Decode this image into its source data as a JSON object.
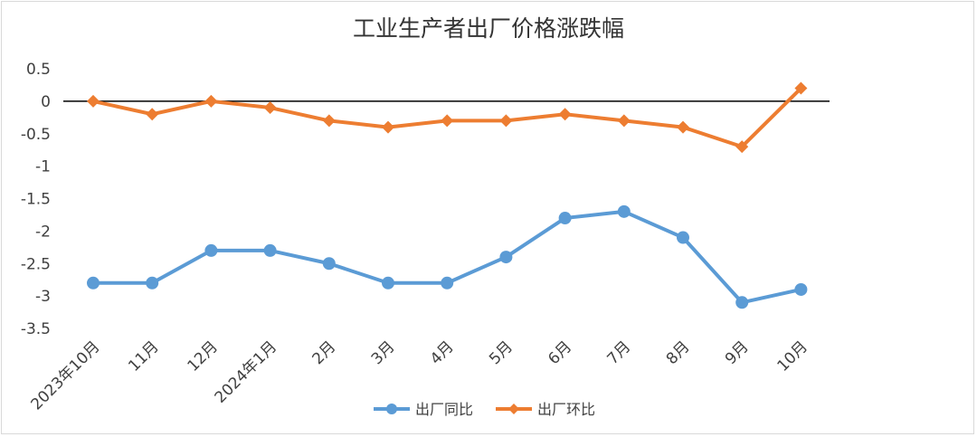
{
  "chart_data": {
    "type": "line",
    "title": "工业生产者出厂价格涨跌幅",
    "xlabel": "",
    "ylabel": "",
    "categories": [
      "2023年10月",
      "11月",
      "12月",
      "2024年1月",
      "2月",
      "3月",
      "4月",
      "5月",
      "6月",
      "7月",
      "8月",
      "9月",
      "10月"
    ],
    "yticks": [
      "0.5",
      "0",
      "-0.5",
      "-1",
      "-1.5",
      "-2",
      "-2.5",
      "-3",
      "-3.5"
    ],
    "ylim": [
      -3.5,
      0.5
    ],
    "grid": false,
    "legend_position": "bottom",
    "series": [
      {
        "name": "出厂同比",
        "color": "#5b9bd5",
        "marker": "circle",
        "values": [
          -2.8,
          -2.8,
          -2.3,
          -2.3,
          -2.5,
          -2.8,
          -2.8,
          -2.4,
          -1.8,
          -1.7,
          -2.1,
          -3.1,
          -2.9
        ]
      },
      {
        "name": "出厂环比",
        "color": "#ed7d31",
        "marker": "diamond",
        "values": [
          0,
          -0.2,
          0,
          -0.1,
          -0.3,
          -0.4,
          -0.3,
          -0.3,
          -0.2,
          -0.3,
          -0.4,
          -0.7,
          0.2
        ]
      }
    ]
  }
}
